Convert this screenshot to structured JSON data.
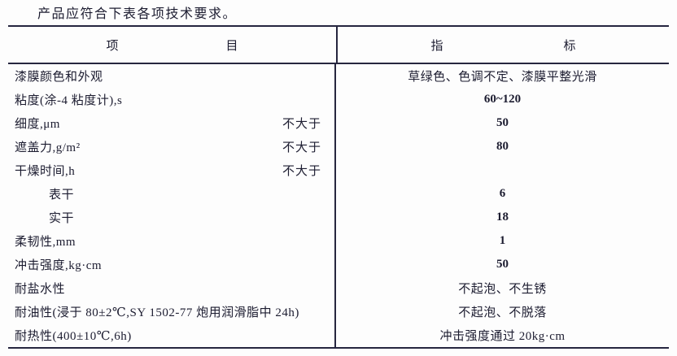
{
  "page": {
    "intro": "产品应符合下表各项技术要求。"
  },
  "colors": {
    "text": "#1c1c30",
    "line": "#26263f",
    "background": "#fdfdfd"
  },
  "table": {
    "header": {
      "item_col": [
        "项",
        "目"
      ],
      "index_col": [
        "指",
        "标"
      ]
    },
    "rows": [
      {
        "label": "漆膜颜色和外观",
        "qualifier": "",
        "value": "草绿色、色调不定、漆膜平整光滑"
      },
      {
        "label": "粘度(涂-4 粘度计),s",
        "qualifier": "",
        "value": "60~120"
      },
      {
        "label": "细度,μm",
        "qualifier": "不大于",
        "value": "50"
      },
      {
        "label": "遮盖力,g/m²",
        "qualifier": "不大于",
        "value": "80"
      },
      {
        "label": "干燥时间,h",
        "qualifier": "不大于",
        "value": ""
      },
      {
        "label": "表干",
        "qualifier": "",
        "value": "6"
      },
      {
        "label": "实干",
        "qualifier": "",
        "value": "18"
      },
      {
        "label": "柔韧性,mm",
        "qualifier": "",
        "value": "1"
      },
      {
        "label": "冲击强度,kg·cm",
        "qualifier": "",
        "value": "50"
      },
      {
        "label": "耐盐水性",
        "qualifier": "",
        "value": "不起泡、不生锈"
      },
      {
        "label": "耐油性(浸于 80±2℃,SY 1502-77 炮用润滑脂中 24h)",
        "qualifier": "",
        "value": "不起泡、不脱落"
      },
      {
        "label": "耐热性(400±10℃,6h)",
        "qualifier": "",
        "value": "冲击强度通过 20kg·cm"
      }
    ]
  }
}
